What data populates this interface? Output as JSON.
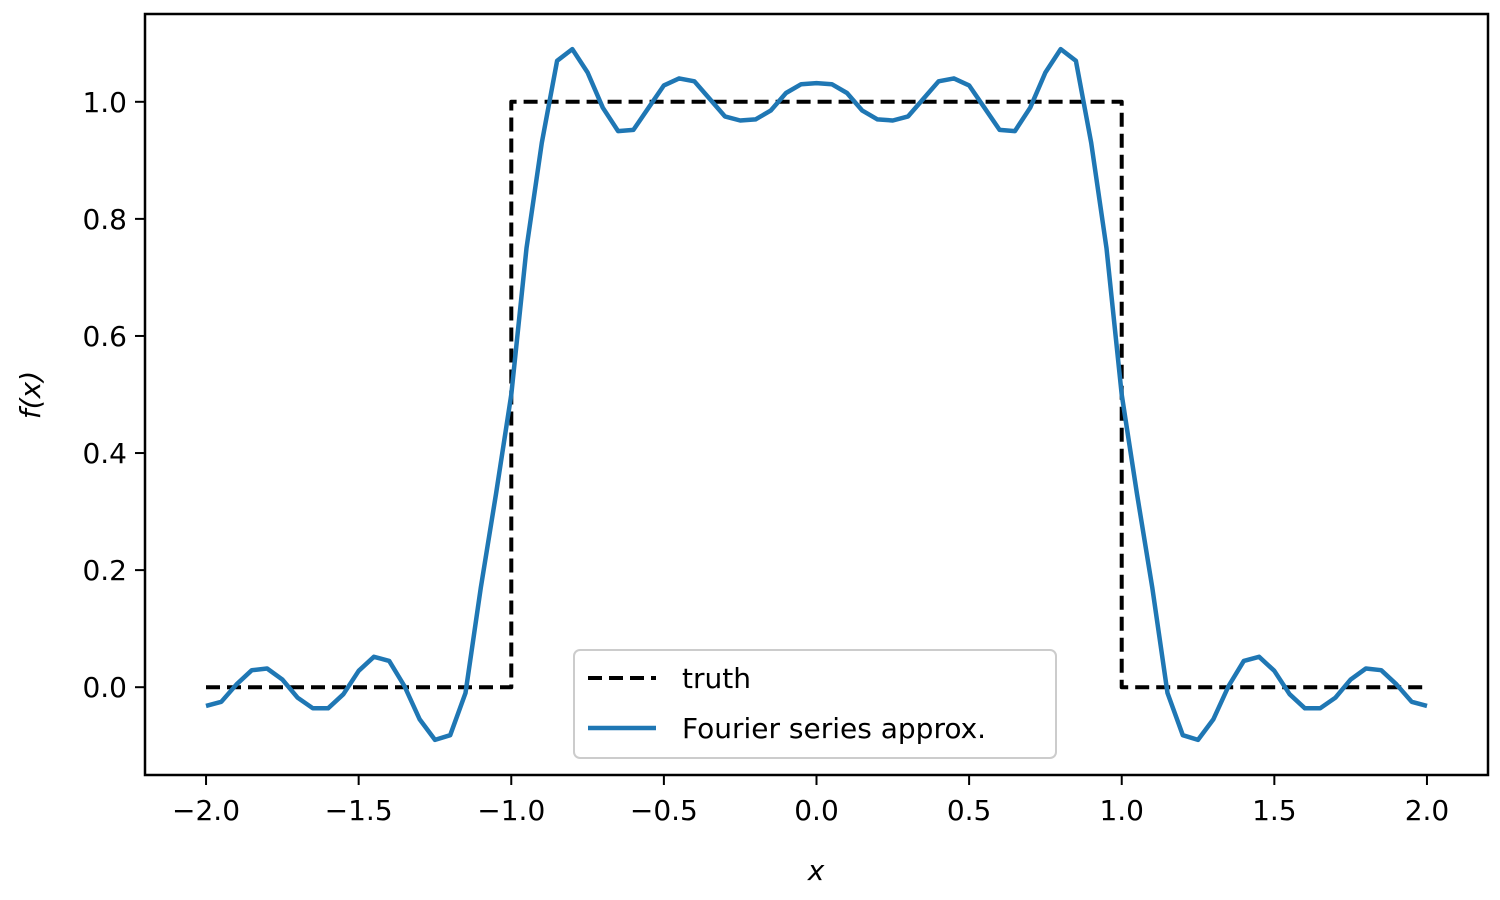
{
  "chart_data": {
    "type": "line",
    "xlabel": "x",
    "ylabel": "f(x)",
    "xlim": [
      -2.2,
      2.2
    ],
    "ylim": [
      -0.15,
      1.15
    ],
    "x_ticks": [
      -2.0,
      -1.5,
      -1.0,
      -0.5,
      0.0,
      0.5,
      1.0,
      1.5,
      2.0
    ],
    "x_tick_labels": [
      "−2.0",
      "−1.5",
      "−1.0",
      "−0.5",
      "0.0",
      "0.5",
      "1.0",
      "1.5",
      "2.0"
    ],
    "y_ticks": [
      0.0,
      0.2,
      0.4,
      0.6,
      0.8,
      1.0
    ],
    "y_tick_labels": [
      "0.0",
      "0.2",
      "0.4",
      "0.6",
      "0.8",
      "1.0"
    ],
    "grid": false,
    "legend_position": "lower-center",
    "series": [
      {
        "name": "truth",
        "style": "dashed",
        "color": "#000000",
        "x": [
          -2.0,
          -1.0,
          -1.0,
          1.0,
          1.0,
          2.0
        ],
        "y": [
          0.0,
          0.0,
          1.0,
          1.0,
          0.0,
          0.0
        ]
      },
      {
        "name": "Fourier series approx.",
        "style": "solid",
        "color": "#1f77b4",
        "x": [
          -2.0,
          -1.95,
          -1.9,
          -1.85,
          -1.8,
          -1.75,
          -1.7,
          -1.65,
          -1.6,
          -1.55,
          -1.5,
          -1.45,
          -1.4,
          -1.35,
          -1.3,
          -1.25,
          -1.2,
          -1.15,
          -1.1,
          -1.05,
          -1.0,
          -0.95,
          -0.9,
          -0.85,
          -0.8,
          -0.75,
          -0.7,
          -0.65,
          -0.6,
          -0.55,
          -0.5,
          -0.45,
          -0.4,
          -0.35,
          -0.3,
          -0.25,
          -0.2,
          -0.15,
          -0.1,
          -0.05,
          0.0,
          0.05,
          0.1,
          0.15,
          0.2,
          0.25,
          0.3,
          0.35,
          0.4,
          0.45,
          0.5,
          0.55,
          0.6,
          0.65,
          0.7,
          0.75,
          0.8,
          0.85,
          0.9,
          0.95,
          1.0,
          1.05,
          1.1,
          1.15,
          1.2,
          1.25,
          1.3,
          1.35,
          1.4,
          1.45,
          1.5,
          1.55,
          1.6,
          1.65,
          1.7,
          1.75,
          1.8,
          1.85,
          1.9,
          1.95,
          2.0
        ],
        "y": [
          -0.032,
          -0.025,
          0.005,
          0.029,
          0.032,
          0.013,
          -0.018,
          -0.036,
          -0.036,
          -0.012,
          0.028,
          0.052,
          0.045,
          0.002,
          -0.055,
          -0.09,
          -0.082,
          -0.01,
          0.17,
          0.33,
          0.5,
          0.75,
          0.93,
          1.07,
          1.09,
          1.05,
          0.99,
          0.95,
          0.952,
          0.99,
          1.028,
          1.04,
          1.035,
          1.005,
          0.975,
          0.968,
          0.97,
          0.985,
          1.015,
          1.03,
          1.032,
          1.03,
          1.015,
          0.985,
          0.97,
          0.968,
          0.975,
          1.005,
          1.035,
          1.04,
          1.028,
          0.99,
          0.952,
          0.95,
          0.99,
          1.05,
          1.09,
          1.07,
          0.93,
          0.75,
          0.5,
          0.33,
          0.17,
          -0.01,
          -0.082,
          -0.09,
          -0.055,
          0.002,
          0.045,
          0.052,
          0.028,
          -0.012,
          -0.036,
          -0.036,
          -0.018,
          0.013,
          0.032,
          0.029,
          0.005,
          -0.025,
          -0.032
        ]
      }
    ]
  }
}
